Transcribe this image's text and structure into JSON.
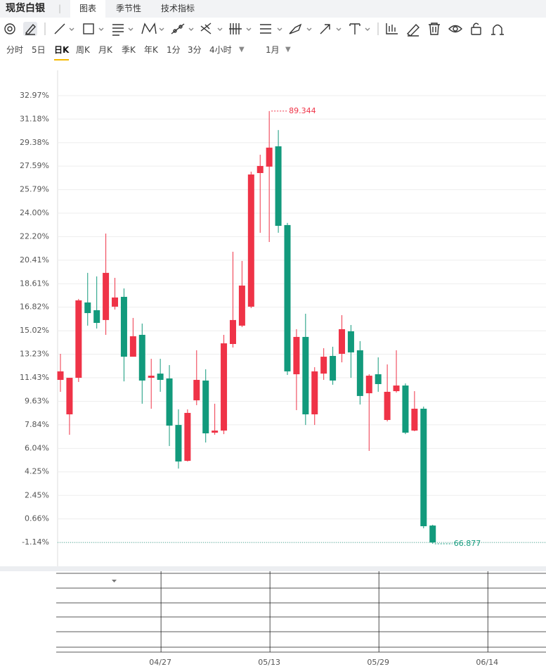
{
  "header": {
    "title": "现货白银",
    "tabs": [
      "图表",
      "季节性",
      "技术指标"
    ]
  },
  "periods": [
    "分时",
    "5日",
    "日K",
    "周K",
    "月K",
    "季K",
    "年K",
    "1分",
    "3分",
    "4小时"
  ],
  "active_period": "日K",
  "range": "1月",
  "chart_data": {
    "type": "candlestick",
    "up_color": "#ef3347",
    "down_color": "#129a7c",
    "grid": true,
    "categories": [
      null,
      null,
      null,
      null,
      null,
      null,
      null,
      null,
      null,
      null,
      null,
      "04/27",
      null,
      null,
      null,
      null,
      null,
      null,
      null,
      null,
      null,
      null,
      null,
      "05/13",
      null,
      null,
      null,
      null,
      null,
      null,
      null,
      null,
      null,
      null,
      null,
      "05/29",
      null,
      null,
      null,
      null,
      null,
      null,
      null,
      null,
      null,
      null,
      null,
      "06/14"
    ],
    "open": [
      11.27,
      8.64,
      11.43,
      17.18,
      16.59,
      15.84,
      16.86,
      17.61,
      13.04,
      14.71,
      11.43,
      11.75,
      11.38,
      7.83,
      5.09,
      9.71,
      11.22,
      7.24,
      7.4,
      14.01,
      15.41,
      16.86,
      27.06,
      27.55,
      29.1,
      23.09,
      11.7,
      14.55,
      8.64,
      11.75,
      13.1,
      13.26,
      14.98,
      13.53,
      10.25,
      11.7,
      8.21,
      10.41,
      10.84,
      7.4,
      9.07,
      0.15,
      null,
      null,
      null,
      null,
      null,
      null
    ],
    "high": [
      13.26,
      11.43,
      17.45,
      19.44,
      19.17,
      22.44,
      19.06,
      18.25,
      16.0,
      15.57,
      12.88,
      12.88,
      12.4,
      9.02,
      9.02,
      13.53,
      12.08,
      9.45,
      14.71,
      21.05,
      20.35,
      27.17,
      28.46,
      31.79,
      30.34,
      23.25,
      15.14,
      16.32,
      12.24,
      13.69,
      13.8,
      16.21,
      15.46,
      14.23,
      11.7,
      12.99,
      12.45,
      13.53,
      11.0,
      10.41,
      9.23,
      0.21,
      null,
      null,
      null,
      null,
      null,
      null
    ],
    "low": [
      10.36,
      7.08,
      11.11,
      15.41,
      15.19,
      14.71,
      16.64,
      11.16,
      13.04,
      9.45,
      9.07,
      10.36,
      6.22,
      4.5,
      5.04,
      9.34,
      6.49,
      7.08,
      7.13,
      13.74,
      15.3,
      16.75,
      22.5,
      21.8,
      22.5,
      11.65,
      8.96,
      7.83,
      7.83,
      11.27,
      10.9,
      12.61,
      11.43,
      9.39,
      5.85,
      10.36,
      8.1,
      10.3,
      7.13,
      7.35,
      -0.06,
      -1.24,
      null,
      null,
      null,
      null,
      null,
      null
    ],
    "close": [
      11.92,
      11.43,
      17.34,
      16.37,
      15.62,
      19.44,
      17.56,
      13.04,
      14.6,
      11.22,
      11.59,
      11.27,
      7.78,
      5.04,
      8.75,
      11.27,
      7.19,
      7.4,
      14.06,
      15.84,
      18.47,
      26.95,
      27.6,
      29.0,
      23.03,
      11.92,
      14.55,
      8.64,
      11.92,
      13.04,
      11.22,
      15.14,
      13.37,
      10.04,
      11.59,
      10.95,
      10.36,
      10.84,
      7.24,
      9.07,
      0.1,
      -1.14,
      null,
      null,
      null,
      null,
      null,
      null
    ],
    "high_label": 89.344,
    "low_label": 66.877,
    "ylim": [
      -2.96,
      34.9
    ],
    "yticks": [
      {
        "value": 32.97,
        "label": "32.97%"
      },
      {
        "value": 31.18,
        "label": "31.18%"
      },
      {
        "value": 29.38,
        "label": "29.38%"
      },
      {
        "value": 27.59,
        "label": "27.59%"
      },
      {
        "value": 25.79,
        "label": "25.79%"
      },
      {
        "value": 24.0,
        "label": "24.00%"
      },
      {
        "value": 22.2,
        "label": "22.20%"
      },
      {
        "value": 20.41,
        "label": "20.41%"
      },
      {
        "value": 18.61,
        "label": "18.61%"
      },
      {
        "value": 16.82,
        "label": "16.82%"
      },
      {
        "value": 15.02,
        "label": "15.02%"
      },
      {
        "value": 13.23,
        "label": "13.23%"
      },
      {
        "value": 11.43,
        "label": "11.43%"
      },
      {
        "value": 9.63,
        "label": "9.63%"
      },
      {
        "value": 7.84,
        "label": "7.84%"
      },
      {
        "value": 6.04,
        "label": "6.04%"
      },
      {
        "value": 4.25,
        "label": "4.25%"
      },
      {
        "value": 2.45,
        "label": "2.45%"
      },
      {
        "value": 0.66,
        "label": "0.66%"
      },
      {
        "value": -1.14,
        "label": "-1.14%"
      }
    ]
  }
}
